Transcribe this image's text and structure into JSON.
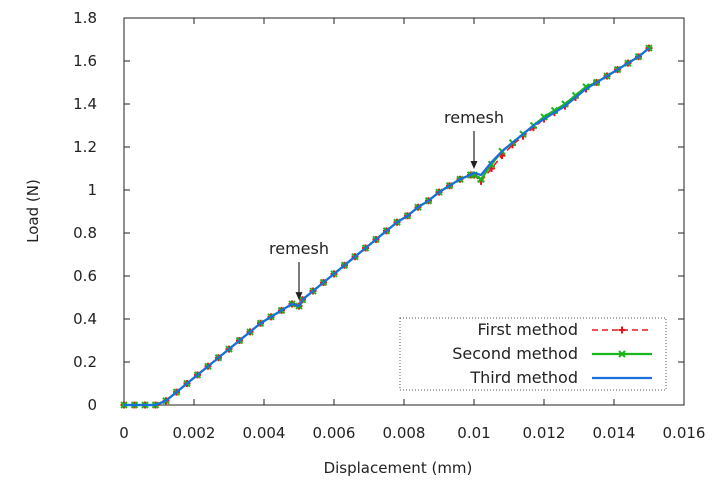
{
  "chart_data": {
    "type": "line",
    "title": "",
    "xlabel": "Displacement (mm)",
    "ylabel": "Load (N)",
    "xlim": [
      0,
      0.016
    ],
    "ylim": [
      0,
      1.8
    ],
    "xticks": [
      "0",
      "0.002",
      "0.004",
      "0.006",
      "0.008",
      "0.01",
      "0.012",
      "0.014",
      "0.016"
    ],
    "yticks": [
      "0",
      "0.2",
      "0.4",
      "0.6",
      "0.8",
      "1",
      "1.2",
      "1.4",
      "1.6",
      "1.8"
    ],
    "grid": false,
    "legend_position": "bottom-right",
    "series": [
      {
        "name": "First method",
        "color": "#e8161c",
        "style": "dashed",
        "marker": "plus",
        "x": [
          0,
          0.0003,
          0.0006,
          0.0009,
          0.0012,
          0.0015,
          0.0018,
          0.0021,
          0.0024,
          0.0027,
          0.003,
          0.0033,
          0.0036,
          0.0039,
          0.0042,
          0.0045,
          0.0048,
          0.005,
          0.0051,
          0.0054,
          0.0057,
          0.006,
          0.0063,
          0.0066,
          0.0069,
          0.0072,
          0.0075,
          0.0078,
          0.0081,
          0.0084,
          0.0087,
          0.009,
          0.0093,
          0.0096,
          0.0099,
          0.01,
          0.0102,
          0.0105,
          0.0108,
          0.0111,
          0.0114,
          0.0117,
          0.012,
          0.0123,
          0.0126,
          0.0129,
          0.0132,
          0.0135,
          0.0138,
          0.0141,
          0.0144,
          0.0147,
          0.015
        ],
        "y": [
          0,
          0,
          0,
          0,
          0.02,
          0.06,
          0.1,
          0.14,
          0.18,
          0.22,
          0.26,
          0.3,
          0.34,
          0.38,
          0.41,
          0.44,
          0.47,
          0.46,
          0.49,
          0.53,
          0.57,
          0.61,
          0.65,
          0.69,
          0.73,
          0.77,
          0.81,
          0.85,
          0.88,
          0.92,
          0.95,
          0.99,
          1.02,
          1.05,
          1.07,
          1.07,
          1.04,
          1.1,
          1.16,
          1.21,
          1.25,
          1.29,
          1.33,
          1.36,
          1.39,
          1.43,
          1.47,
          1.5,
          1.53,
          1.56,
          1.59,
          1.62,
          1.66
        ]
      },
      {
        "name": "Second method",
        "color": "#19b51c",
        "style": "solid",
        "marker": "x",
        "x": [
          0,
          0.0003,
          0.0006,
          0.0009,
          0.0012,
          0.0015,
          0.0018,
          0.0021,
          0.0024,
          0.0027,
          0.003,
          0.0033,
          0.0036,
          0.0039,
          0.0042,
          0.0045,
          0.0048,
          0.005,
          0.0051,
          0.0054,
          0.0057,
          0.006,
          0.0063,
          0.0066,
          0.0069,
          0.0072,
          0.0075,
          0.0078,
          0.0081,
          0.0084,
          0.0087,
          0.009,
          0.0093,
          0.0096,
          0.0099,
          0.01,
          0.0102,
          0.0105,
          0.0108,
          0.0111,
          0.0114,
          0.0117,
          0.012,
          0.0123,
          0.0126,
          0.0129,
          0.0132,
          0.0135,
          0.0138,
          0.0141,
          0.0144,
          0.0147,
          0.015
        ],
        "y": [
          0,
          0,
          0,
          0,
          0.02,
          0.06,
          0.1,
          0.14,
          0.18,
          0.22,
          0.26,
          0.3,
          0.34,
          0.38,
          0.41,
          0.44,
          0.47,
          0.46,
          0.49,
          0.53,
          0.57,
          0.61,
          0.65,
          0.69,
          0.73,
          0.77,
          0.81,
          0.85,
          0.88,
          0.92,
          0.95,
          0.99,
          1.02,
          1.05,
          1.07,
          1.07,
          1.05,
          1.12,
          1.18,
          1.22,
          1.26,
          1.3,
          1.34,
          1.37,
          1.4,
          1.44,
          1.48,
          1.5,
          1.53,
          1.56,
          1.59,
          1.62,
          1.66
        ]
      },
      {
        "name": "Third method",
        "color": "#1a6fe0",
        "style": "solid",
        "marker": "none",
        "x": [
          0,
          0.0003,
          0.0006,
          0.0009,
          0.0012,
          0.0015,
          0.0018,
          0.0021,
          0.0024,
          0.0027,
          0.003,
          0.0033,
          0.0036,
          0.0039,
          0.0042,
          0.0045,
          0.0048,
          0.005,
          0.0051,
          0.0054,
          0.0057,
          0.006,
          0.0063,
          0.0066,
          0.0069,
          0.0072,
          0.0075,
          0.0078,
          0.0081,
          0.0084,
          0.0087,
          0.009,
          0.0093,
          0.0096,
          0.0099,
          0.01,
          0.0102,
          0.0105,
          0.0108,
          0.0111,
          0.0114,
          0.0117,
          0.012,
          0.0123,
          0.0126,
          0.0129,
          0.0132,
          0.0135,
          0.0138,
          0.0141,
          0.0144,
          0.0147,
          0.015
        ],
        "y": [
          0,
          0,
          0,
          0,
          0.02,
          0.06,
          0.1,
          0.14,
          0.18,
          0.22,
          0.26,
          0.3,
          0.34,
          0.38,
          0.41,
          0.44,
          0.47,
          0.46,
          0.49,
          0.53,
          0.57,
          0.61,
          0.65,
          0.69,
          0.73,
          0.77,
          0.81,
          0.85,
          0.88,
          0.92,
          0.95,
          0.99,
          1.02,
          1.05,
          1.07,
          1.08,
          1.07,
          1.13,
          1.18,
          1.22,
          1.26,
          1.3,
          1.33,
          1.36,
          1.39,
          1.43,
          1.47,
          1.5,
          1.53,
          1.56,
          1.59,
          1.62,
          1.66
        ]
      }
    ],
    "annotations": [
      {
        "text": "remesh",
        "x": 0.005,
        "y": 0.46
      },
      {
        "text": "remesh",
        "x": 0.01,
        "y": 1.07
      }
    ]
  }
}
